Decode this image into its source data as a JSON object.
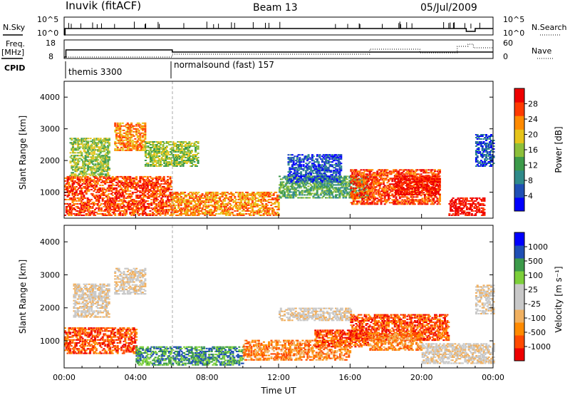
{
  "header": {
    "station": "Inuvik (fitACF)",
    "beam": "Beam 13",
    "date": "05/Jul/2009"
  },
  "summary": {
    "nsky_label": "N.Sky",
    "nsky_ticks": [
      "10^5",
      "10^0"
    ],
    "nsearch_label": "N.Search",
    "nsearch_ticks": [
      "10^5",
      "10^0"
    ],
    "freq_label": "Freq.",
    "freq_unit": "[MHz]",
    "freq_ticks": [
      "18",
      "8"
    ],
    "nave_label": "Nave",
    "nave_ticks": [
      "60",
      "0"
    ],
    "cpid_label": "CPID",
    "cpid_segments": [
      {
        "name": "themis 3300",
        "start_h": 0
      },
      {
        "name": "normalsound (fast) 157",
        "start_h": 6
      }
    ]
  },
  "chart_data": [
    {
      "type": "heatmap",
      "panel": "power",
      "ylabel": "Slant Range [km]",
      "xlabel": "",
      "xlim_hours": [
        0,
        24
      ],
      "ylim": [
        180,
        4500
      ],
      "yticks": [
        "1000",
        "2000",
        "3000",
        "4000"
      ],
      "colorbar": {
        "label": "Power [dB]",
        "ticks": [
          "28",
          "24",
          "20",
          "16",
          "12",
          "8",
          "4"
        ],
        "colors": [
          "#0000ff",
          "#1f4fb4",
          "#2f8a8a",
          "#3c9a4a",
          "#8cbf3a",
          "#e6c41a",
          "#ff8a00",
          "#ff3a00",
          "#ee0000"
        ]
      },
      "regions": [
        {
          "t0": 0.0,
          "t1": 6.0,
          "r0": 250,
          "r1": 1500,
          "level": 7
        },
        {
          "t0": 0.3,
          "t1": 2.5,
          "r0": 1500,
          "r1": 2700,
          "level": 4
        },
        {
          "t0": 2.8,
          "t1": 4.5,
          "r0": 2300,
          "r1": 3200,
          "level": 6
        },
        {
          "t0": 4.5,
          "t1": 7.5,
          "r0": 1800,
          "r1": 2600,
          "level": 4
        },
        {
          "t0": 6.0,
          "t1": 12.0,
          "r0": 250,
          "r1": 1000,
          "level": 6
        },
        {
          "t0": 12.0,
          "t1": 17.0,
          "r0": 800,
          "r1": 1500,
          "level": 3
        },
        {
          "t0": 12.5,
          "t1": 15.5,
          "r0": 1300,
          "r1": 2200,
          "level": 1
        },
        {
          "t0": 16.0,
          "t1": 21.0,
          "r0": 600,
          "r1": 1700,
          "level": 7
        },
        {
          "t0": 18.5,
          "t1": 21.0,
          "r0": 900,
          "r1": 1500,
          "level": 8
        },
        {
          "t0": 21.5,
          "t1": 23.5,
          "r0": 250,
          "r1": 800,
          "level": 8
        },
        {
          "t0": 23.0,
          "t1": 24.0,
          "r0": 1800,
          "r1": 2800,
          "level": 1
        }
      ]
    },
    {
      "type": "heatmap",
      "panel": "velocity",
      "ylabel": "Slant Range [km]",
      "xlabel": "Time UT",
      "xlim_hours": [
        0,
        24
      ],
      "ylim": [
        180,
        4500
      ],
      "xticks": [
        "00:00",
        "04:00",
        "08:00",
        "12:00",
        "16:00",
        "20:00",
        "00:00"
      ],
      "yticks": [
        "1000",
        "2000",
        "3000",
        "4000"
      ],
      "colorbar": {
        "label": "Velocity [m s⁻¹]",
        "ticks": [
          "1000",
          "500",
          "100",
          "25",
          "-25",
          "-100",
          "-500",
          "-1000"
        ],
        "colors": [
          "#ee0000",
          "#ff4a00",
          "#ff8a00",
          "#f0b060",
          "#c8c8c8",
          "#c8c8c8",
          "#7ccf3a",
          "#3c9a4a",
          "#1f4fb4",
          "#0000ff"
        ]
      },
      "regions": [
        {
          "t0": 0.0,
          "t1": 4.0,
          "r0": 600,
          "r1": 1400,
          "level": 1
        },
        {
          "t0": 0.5,
          "t1": 2.5,
          "r0": 1700,
          "r1": 2700,
          "level": 4
        },
        {
          "t0": 2.8,
          "t1": 4.5,
          "r0": 2400,
          "r1": 3200,
          "level": 4
        },
        {
          "t0": 4.0,
          "t1": 10.0,
          "r0": 250,
          "r1": 800,
          "level": 7
        },
        {
          "t0": 10.0,
          "t1": 16.0,
          "r0": 400,
          "r1": 1000,
          "level": 2
        },
        {
          "t0": 12.0,
          "t1": 16.0,
          "r0": 1600,
          "r1": 2000,
          "level": 4
        },
        {
          "t0": 14.0,
          "t1": 17.0,
          "r0": 800,
          "r1": 1300,
          "level": 1
        },
        {
          "t0": 16.0,
          "t1": 21.5,
          "r0": 1000,
          "r1": 1800,
          "level": 1
        },
        {
          "t0": 17.0,
          "t1": 20.0,
          "r0": 700,
          "r1": 1200,
          "level": 2
        },
        {
          "t0": 20.0,
          "t1": 24.0,
          "r0": 300,
          "r1": 900,
          "level": 4
        },
        {
          "t0": 23.0,
          "t1": 24.0,
          "r0": 1800,
          "r1": 2700,
          "level": 4
        }
      ]
    }
  ]
}
